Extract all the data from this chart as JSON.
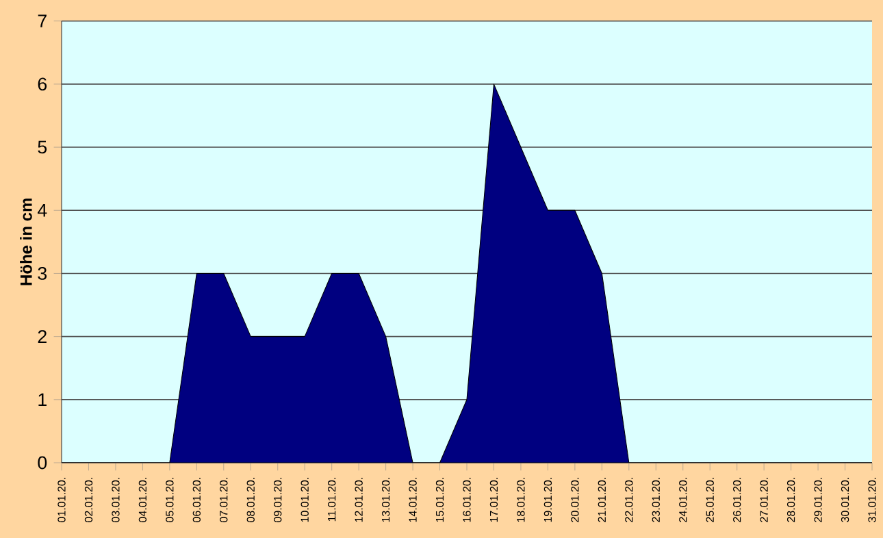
{
  "chart_data": {
    "type": "area",
    "ylabel": "Höhe in cm",
    "categories": [
      "01.01.20.",
      "02.01.20.",
      "03.01.20.",
      "04.01.20.",
      "05.01.20.",
      "06.01.20.",
      "07.01.20.",
      "08.01.20.",
      "09.01.20.",
      "10.01.20.",
      "11.01.20.",
      "12.01.20.",
      "13.01.20.",
      "14.01.20.",
      "15.01.20.",
      "16.01.20.",
      "17.01.20.",
      "18.01.20.",
      "19.01.20.",
      "20.01.20.",
      "21.01.20.",
      "22.01.20.",
      "23.01.20.",
      "24.01.20.",
      "25.01.20.",
      "26.01.20.",
      "27.01.20.",
      "28.01.20.",
      "29.01.20.",
      "30.01.20.",
      "31.01.20."
    ],
    "values": [
      0,
      0,
      0,
      0,
      0,
      3,
      3,
      2,
      2,
      2,
      3,
      3,
      2,
      0,
      0,
      1,
      6,
      5,
      4,
      4,
      3,
      0,
      0,
      0,
      0,
      0,
      0,
      0,
      0,
      0,
      0
    ],
    "color": "#000080",
    "ylim": [
      0,
      7
    ],
    "yticks": [
      0,
      1,
      2,
      3,
      4,
      5,
      6,
      7
    ],
    "grid": "y"
  }
}
